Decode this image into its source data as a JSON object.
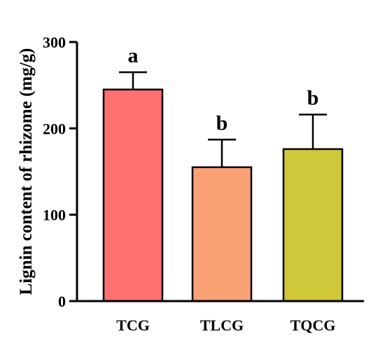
{
  "chart_data": {
    "type": "bar",
    "title": "",
    "xlabel": "",
    "ylabel": "Lignin content of rhizome (mg/g)",
    "ylim": [
      0,
      300
    ],
    "yticks": [
      0,
      100,
      200,
      300
    ],
    "categories": [
      "TCG",
      "TLCG",
      "TQCG"
    ],
    "values": [
      245,
      155,
      176
    ],
    "errors": [
      20,
      32,
      40
    ],
    "significance": [
      "a",
      "b",
      "b"
    ],
    "colors": [
      "#ff7070",
      "#fba176",
      "#cfc83a"
    ],
    "grid": false,
    "legend": "none"
  }
}
